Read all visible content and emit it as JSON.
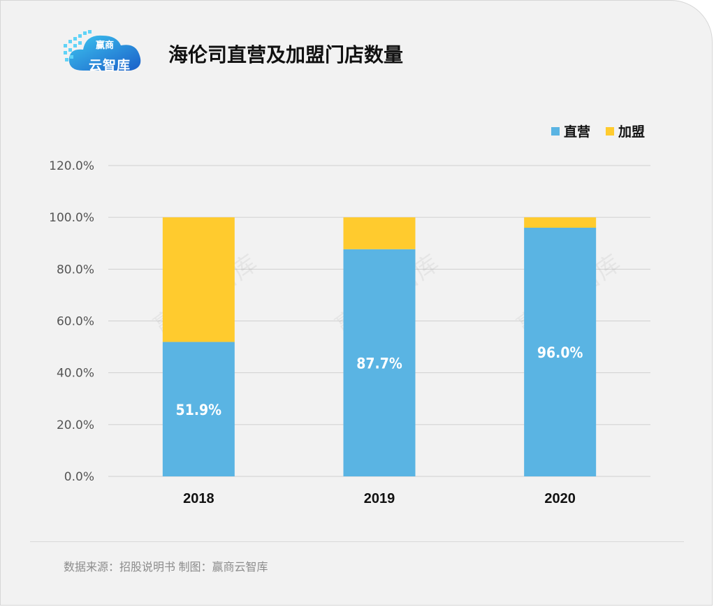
{
  "header": {
    "title": "海伦司直营及加盟门店数量",
    "logo_brand": "赢商",
    "logo_name": "云智库"
  },
  "footer": {
    "source": "数据来源：招股说明书  制图：赢商云智库"
  },
  "watermark": "赢商云智库",
  "colors": {
    "direct": "#5ab4e3",
    "franchise": "#ffcb2e",
    "grid": "#d0d0d0"
  },
  "chart_data": {
    "type": "bar",
    "stacked": true,
    "categories": [
      "2018",
      "2019",
      "2020"
    ],
    "series": [
      {
        "name": "直营",
        "values": [
          51.9,
          87.7,
          96.0
        ],
        "labels": [
          "51.9%",
          "87.7%",
          "96.0%"
        ]
      },
      {
        "name": "加盟",
        "values": [
          48.1,
          12.3,
          4.0
        ]
      }
    ],
    "ylim": [
      0,
      120
    ],
    "yticks": [
      "0.0%",
      "20.0%",
      "40.0%",
      "60.0%",
      "80.0%",
      "100.0%",
      "120.0%"
    ],
    "grid": true,
    "legend_position": "top-right"
  }
}
